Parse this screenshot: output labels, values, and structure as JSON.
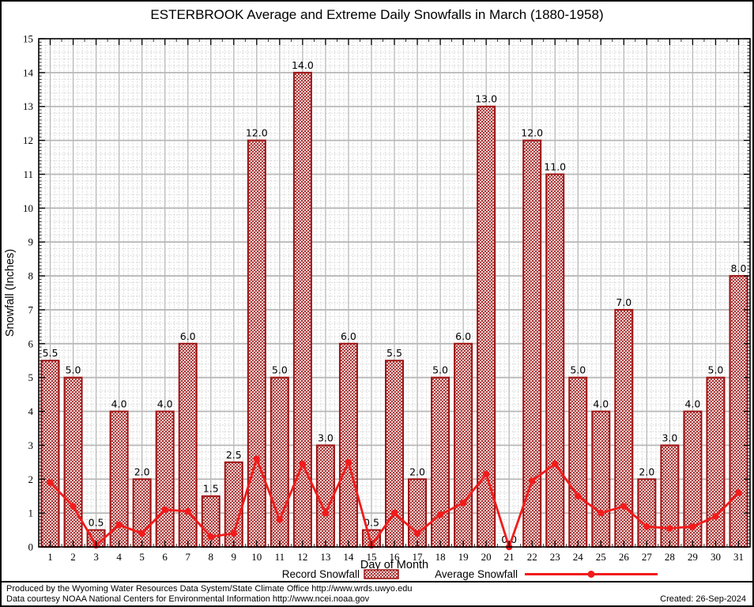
{
  "chart_data": {
    "type": "bar",
    "title": "ESTERBROOK Average and Extreme Daily Snowfalls in March (1880-1958)",
    "xlabel": "Day of Month",
    "ylabel": "Snowfall (Inches)",
    "ylim": [
      0,
      15
    ],
    "grid": true,
    "legend_position": "bottom",
    "categories": [
      1,
      2,
      3,
      4,
      5,
      6,
      7,
      8,
      9,
      10,
      11,
      12,
      13,
      14,
      15,
      16,
      17,
      18,
      19,
      20,
      21,
      22,
      23,
      24,
      25,
      26,
      27,
      28,
      29,
      30,
      31
    ],
    "series": [
      {
        "name": "Record Snowfall",
        "type": "bar",
        "values": [
          5.5,
          5.0,
          0.5,
          4.0,
          2.0,
          4.0,
          6.0,
          1.5,
          2.5,
          12.0,
          5.0,
          14.0,
          3.0,
          6.0,
          0.5,
          5.5,
          2.0,
          5.0,
          6.0,
          13.0,
          0.0,
          12.0,
          11.0,
          5.0,
          4.0,
          7.0,
          2.0,
          3.0,
          4.0,
          5.0,
          8.0
        ]
      },
      {
        "name": "Average Snowfall",
        "type": "line",
        "values": [
          1.9,
          1.2,
          0.05,
          0.65,
          0.4,
          1.1,
          1.05,
          0.3,
          0.4,
          2.6,
          0.8,
          2.45,
          1.0,
          2.5,
          0.05,
          1.0,
          0.4,
          0.95,
          1.3,
          2.15,
          0.0,
          1.95,
          2.45,
          1.5,
          1.0,
          1.2,
          0.6,
          0.55,
          0.6,
          0.9,
          1.6
        ]
      }
    ]
  },
  "footer": {
    "line1": "Produced by the Wyoming Water Resources Data System/State Climate Office http://www.wrds.uwyo.edu",
    "line2": "Data courtesy NOAA National Centers for Environmental Information http://www.ncei.noaa.gov",
    "created": "Created: 26-Sep-2024"
  },
  "colors": {
    "bar_border": "#9e1313",
    "bar_hatch": "#9e1313",
    "line": "#f21b1b",
    "grid_major": "#b8b8b8",
    "grid_minor": "#cfcfcf",
    "axis": "#000000",
    "background": "#ffffff"
  }
}
